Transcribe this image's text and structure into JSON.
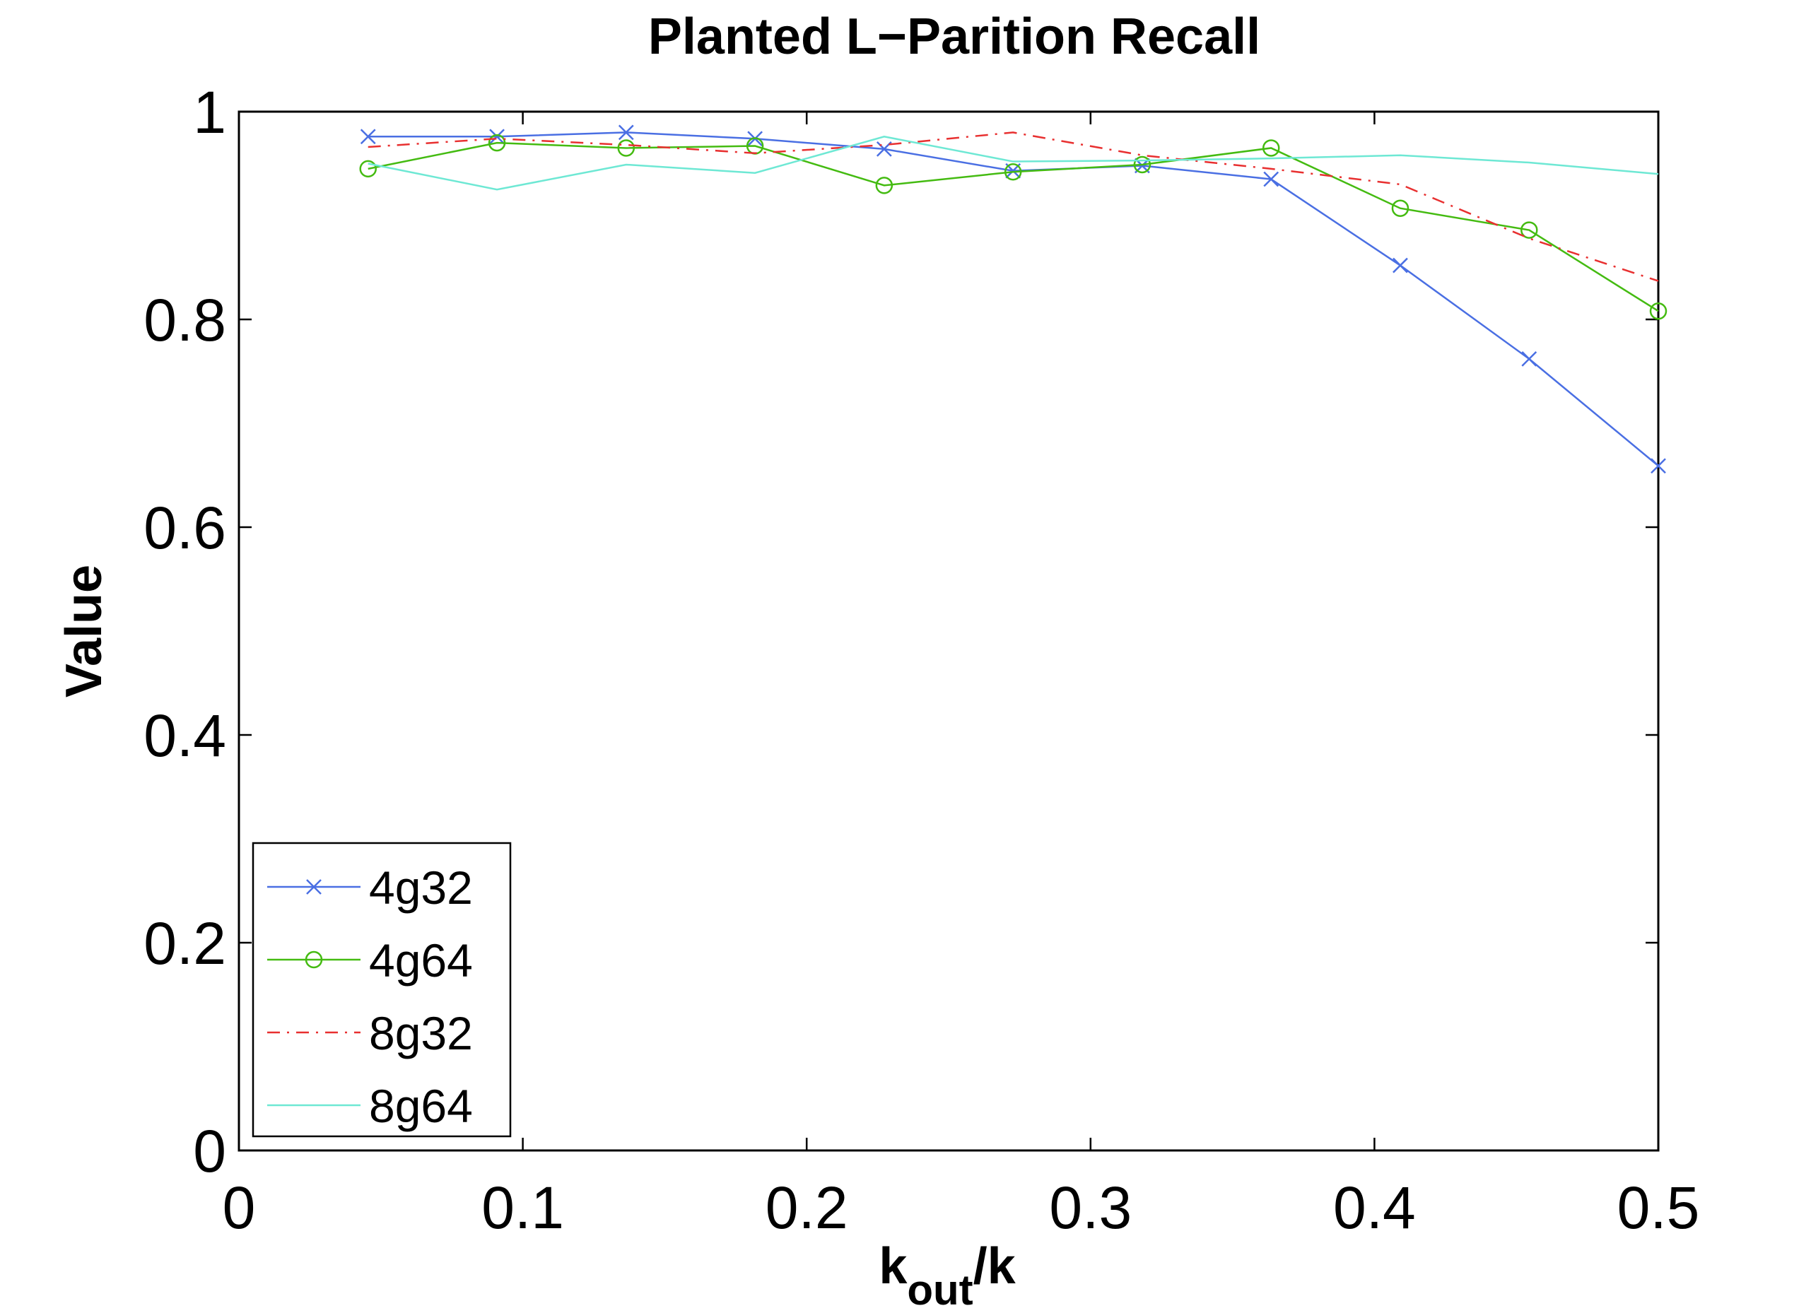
{
  "chart_data": {
    "type": "line",
    "title": "Planted L−Parition Recall",
    "xlabel_main": "k",
    "xlabel_sub": "out",
    "xlabel_tail": "/k",
    "ylabel": "Value",
    "xlim": [
      0,
      0.5
    ],
    "ylim": [
      0,
      1
    ],
    "xticks": [
      0,
      0.1,
      0.2,
      0.3,
      0.4,
      0.5
    ],
    "xtick_labels": [
      "0",
      "0.1",
      "0.2",
      "0.3",
      "0.4",
      "0.5"
    ],
    "yticks": [
      0,
      0.2,
      0.4,
      0.6,
      0.8,
      1
    ],
    "ytick_labels": [
      "0",
      "0.2",
      "0.4",
      "0.6",
      "0.8",
      "1"
    ],
    "grid": false,
    "legend_position": "bottom-left",
    "x": [
      0.0455,
      0.0909,
      0.1364,
      0.1818,
      0.2273,
      0.2727,
      0.3182,
      0.3636,
      0.4091,
      0.4545,
      0.5
    ],
    "series": [
      {
        "name": "4g32",
        "color": "#4a6fe3",
        "marker": "x",
        "dash": "solid",
        "values": [
          0.976,
          0.976,
          0.98,
          0.974,
          0.964,
          0.943,
          0.948,
          0.935,
          0.852,
          0.762,
          0.659
        ]
      },
      {
        "name": "4g64",
        "color": "#44bb11",
        "marker": "o",
        "dash": "solid",
        "values": [
          0.945,
          0.97,
          0.965,
          0.967,
          0.929,
          0.942,
          0.949,
          0.965,
          0.907,
          0.886,
          0.808
        ]
      },
      {
        "name": "8g32",
        "color": "#e83030",
        "marker": "none",
        "dash": "dashdot",
        "values": [
          0.966,
          0.974,
          0.968,
          0.96,
          0.968,
          0.98,
          0.958,
          0.945,
          0.93,
          0.878,
          0.837
        ]
      },
      {
        "name": "8g64",
        "color": "#6ee8d4",
        "marker": "none",
        "dash": "solid",
        "values": [
          0.95,
          0.925,
          0.949,
          0.941,
          0.976,
          0.952,
          0.953,
          0.955,
          0.958,
          0.951,
          0.94
        ]
      }
    ]
  }
}
